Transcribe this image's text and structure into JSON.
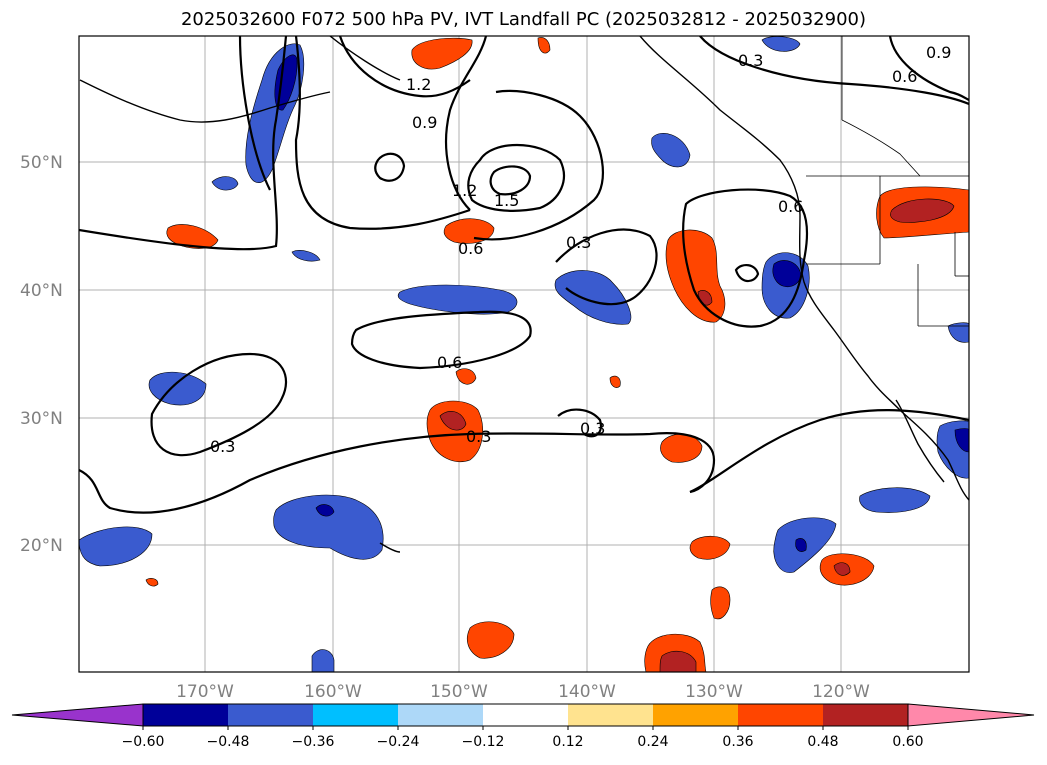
{
  "title": "2025032600 F072 500 hPa PV, IVT Landfall PC (2025032812 - 2025032900)",
  "lat_labels": [
    "50°N",
    "40°N",
    "30°N",
    "20°N"
  ],
  "lon_labels": [
    "170°W",
    "160°W",
    "150°W",
    "140°W",
    "130°W",
    "120°W"
  ],
  "colorbar": {
    "ticks": [
      "−0.60",
      "−0.48",
      "−0.36",
      "−0.24",
      "−0.12",
      "0.12",
      "0.24",
      "0.36",
      "0.48",
      "0.60"
    ],
    "colors": [
      "#9933cc",
      "#000099",
      "#3a5bcf",
      "#00bfff",
      "#add8f8",
      "#ffffff",
      "#ffe38f",
      "#ffa200",
      "#ff4500",
      "#b22222",
      "#ff88aa"
    ]
  },
  "pv_contour_labels": [
    "1.2",
    "0.9",
    "1.2",
    "1.5",
    "0.6",
    "0.3",
    "0.6",
    "0.3",
    "0.6",
    "0.3",
    "0.3",
    "0.3",
    "0.9",
    "0.6"
  ]
}
